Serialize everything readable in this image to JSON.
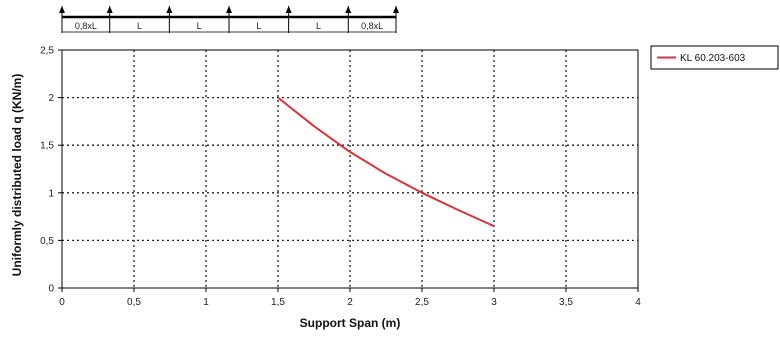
{
  "chart_data": {
    "type": "line",
    "xlabel": "Support Span (m)",
    "ylabel": "Uniformly distributed load q (KN/m)",
    "xlim": [
      0,
      4
    ],
    "ylim": [
      0,
      2.5
    ],
    "x_ticks": [
      "0",
      "0,5",
      "1",
      "1,5",
      "2",
      "2,5",
      "3",
      "3,5",
      "4"
    ],
    "y_ticks": [
      "0",
      "0,5",
      "1",
      "1,5",
      "2",
      "2,5"
    ],
    "grid": true,
    "legend_position": "top-right",
    "series": [
      {
        "name": "KL 60.203-603",
        "color": "#d9323a",
        "x": [
          1.5,
          1.75,
          2.0,
          2.25,
          2.5,
          2.75,
          3.0
        ],
        "y": [
          2.0,
          1.7,
          1.43,
          1.2,
          1.0,
          0.82,
          0.65
        ]
      }
    ]
  },
  "beam_diagram": {
    "segment_labels": [
      "0,8xL",
      "L",
      "L",
      "L",
      "L",
      "0,8xL"
    ]
  }
}
